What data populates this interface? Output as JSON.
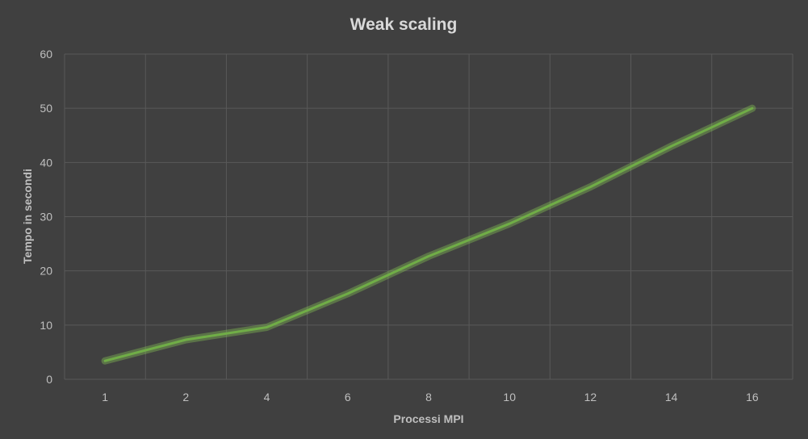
{
  "chart_data": {
    "type": "line",
    "title": "Weak scaling",
    "xlabel": "Processi MPI",
    "ylabel": "Tempo in secondi",
    "categories": [
      "1",
      "2",
      "4",
      "6",
      "8",
      "10",
      "12",
      "14",
      "16"
    ],
    "series": [
      {
        "values": [
          3.4,
          7.3,
          9.6,
          15.8,
          22.7,
          28.7,
          35.5,
          43.0,
          50.0
        ]
      }
    ],
    "ylim": [
      0,
      60
    ],
    "yticks": [
      "0",
      "10",
      "20",
      "30",
      "40",
      "50",
      "60"
    ],
    "grid": true,
    "legend": "none",
    "colors": {
      "background": "#404040",
      "line": "#70ad47",
      "grid": "#595959",
      "text": "#bfbfbf",
      "title": "#d9d9d9"
    }
  }
}
